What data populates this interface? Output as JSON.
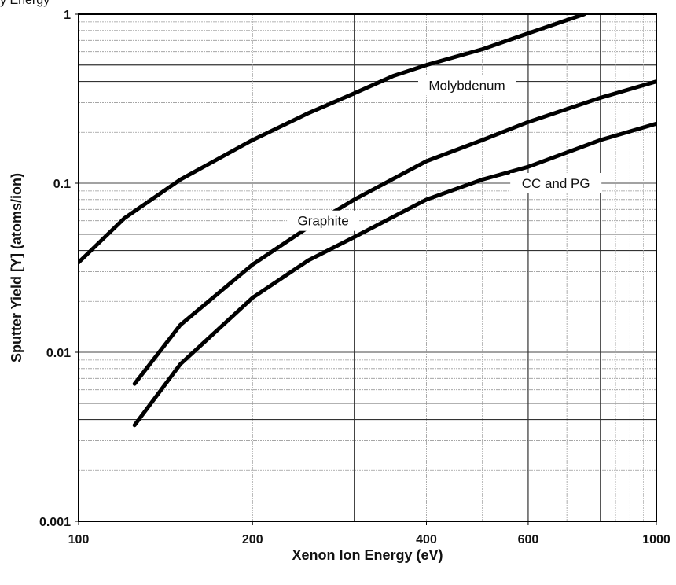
{
  "header_fragment": "y  Energy",
  "chart_data": {
    "type": "line",
    "title": "",
    "xlabel": "Xenon Ion Energy (eV)",
    "ylabel": "Sputter Yield [Y] (atoms/ion)",
    "x_scale": "log",
    "y_scale": "log",
    "xlim": [
      100,
      1000
    ],
    "ylim": [
      0.001,
      1
    ],
    "x_ticks": [
      100,
      200,
      400,
      600,
      1000
    ],
    "x_tick_labels": [
      "100",
      "200",
      "400",
      "600",
      "1000"
    ],
    "y_ticks": [
      0.001,
      0.01,
      0.1,
      1
    ],
    "y_tick_labels": [
      "0.001",
      "0.01",
      "0.1",
      "1"
    ],
    "grid": true,
    "legend": "none",
    "series": [
      {
        "name": "Molybdenum",
        "x": [
          100,
          120,
          150,
          200,
          250,
          300,
          350,
          400,
          500,
          600,
          750
        ],
        "y": [
          0.034,
          0.062,
          0.105,
          0.18,
          0.26,
          0.34,
          0.43,
          0.5,
          0.62,
          0.77,
          1.0
        ]
      },
      {
        "name": "Graphite",
        "x": [
          125,
          150,
          200,
          250,
          300,
          400,
          500,
          600,
          800,
          1000
        ],
        "y": [
          0.0065,
          0.0145,
          0.033,
          0.055,
          0.08,
          0.135,
          0.18,
          0.23,
          0.32,
          0.4
        ]
      },
      {
        "name": "CC and PG",
        "x": [
          125,
          150,
          200,
          250,
          300,
          400,
          500,
          600,
          800,
          1000
        ],
        "y": [
          0.0037,
          0.0085,
          0.021,
          0.035,
          0.048,
          0.08,
          0.105,
          0.125,
          0.18,
          0.225
        ]
      }
    ],
    "annotations": [
      {
        "text": "Molybdenum",
        "x": 470,
        "y": 0.38
      },
      {
        "text": "Graphite",
        "x": 265,
        "y": 0.06
      },
      {
        "text": "CC and PG",
        "x": 670,
        "y": 0.1
      }
    ]
  }
}
